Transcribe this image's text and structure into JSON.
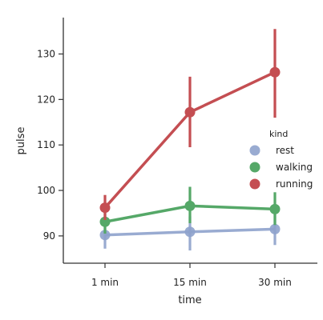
{
  "chart_data": {
    "type": "line",
    "xlabel": "time",
    "ylabel": "pulse",
    "categories": [
      "1 min",
      "15 min",
      "30 min"
    ],
    "ylim": [
      84,
      138
    ],
    "yticks": [
      90,
      100,
      110,
      120,
      130
    ],
    "grid": false,
    "legend": {
      "title": "kind",
      "placement": "right"
    },
    "series": [
      {
        "name": "rest",
        "color": "#8ea2cc",
        "values": [
          90.2,
          90.9,
          91.5
        ],
        "ci_low": [
          87.2,
          86.8,
          88.0
        ],
        "ci_high": [
          93.0,
          94.3,
          95.0
        ]
      },
      {
        "name": "walking",
        "color": "#55a868",
        "values": [
          93.1,
          96.6,
          95.9
        ],
        "ci_low": [
          90.5,
          92.8,
          92.4
        ],
        "ci_high": [
          96.0,
          100.8,
          99.6
        ]
      },
      {
        "name": "running",
        "color": "#c44e52",
        "values": [
          96.2,
          117.2,
          126.0
        ],
        "ci_low": [
          93.5,
          109.5,
          116.0
        ],
        "ci_high": [
          99.0,
          125.0,
          135.5
        ]
      }
    ]
  }
}
